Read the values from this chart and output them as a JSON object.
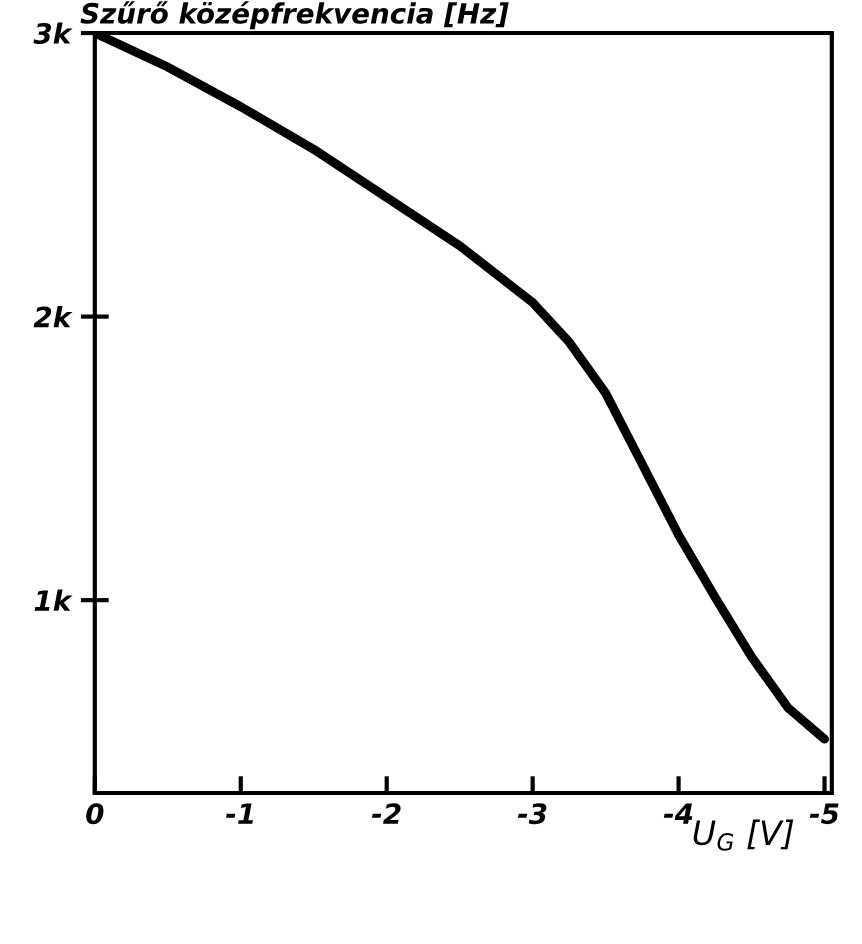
{
  "chart_data": {
    "type": "line",
    "ylabel": "Szűrő középfrekvencia [Hz]",
    "xlabel": "U$_{G}$ [V]",
    "x": [
      0,
      -0.5,
      -1,
      -1.5,
      -2,
      -2.5,
      -3,
      -3.25,
      -3.5,
      -3.75,
      -4,
      -4.25,
      -4.5,
      -4.75,
      -5
    ],
    "series": [
      {
        "color": "#000000",
        "values": [
          3000,
          2880,
          2740,
          2590,
          2420,
          2250,
          2050,
          1910,
          1730,
          1480,
          1230,
          1010,
          800,
          620,
          510
        ]
      }
    ],
    "xlim": [
      0,
      -5.05
    ],
    "ylim": [
      320,
      3000
    ],
    "xticks": [
      0,
      -1,
      -2,
      -3,
      -4,
      -5
    ],
    "yticks": [
      {
        "value": 1000,
        "label": "1k"
      },
      {
        "value": 2000,
        "label": "2k"
      },
      {
        "value": 3000,
        "label": "3k"
      }
    ],
    "grid": false,
    "legend": false,
    "marker": "none",
    "line_style": "solid"
  }
}
